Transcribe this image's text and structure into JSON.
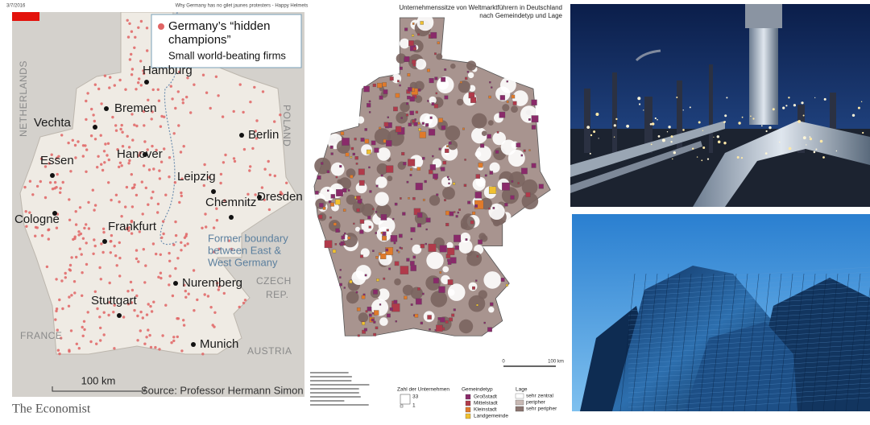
{
  "header": {
    "date": "3/7/2016",
    "title": "Why Germany has no gilet jaunes protesters - Happy Helmets"
  },
  "left_map": {
    "legend_title_lines": [
      "Germany’s “hidden",
      "champions”"
    ],
    "legend_subtitle": "Small world-beating firms",
    "cities": [
      "Hamburg",
      "Bremen",
      "Vechta",
      "Berlin",
      "Hanover",
      "Essen",
      "Leipzig",
      "Dresden",
      "Cologne",
      "Chemnitz",
      "Frankfurt",
      "Nuremberg",
      "Stuttgart",
      "Munich"
    ],
    "countries": [
      "NETHERLANDS",
      "POLAND",
      "CZECH",
      "REP.",
      "FRANCE",
      "AUSTRIA"
    ],
    "boundary_note_lines": [
      "Former boundary",
      "between East &",
      "West Germany"
    ],
    "scale": "100 km",
    "source": "Source: Professor Hermann Simon",
    "brand": "The Economist"
  },
  "right_map": {
    "title_lines": [
      "Unternehmenssitze von Weltmarktführern in Deutschland",
      "nach Gemeindetyp und Lage"
    ],
    "count_legend": {
      "title": "Zahl der Unternehmen",
      "max": "33",
      "min": "1"
    },
    "type_legend": {
      "title": "Gemeindetyp",
      "items": [
        "Großstadt",
        "Mittelstadt",
        "Kleinstadt",
        "Landgemeinde"
      ]
    },
    "location_legend": {
      "title": "Lage",
      "items": [
        "sehr zentral",
        "peripher",
        "sehr peripher"
      ]
    },
    "scale": {
      "start": "0",
      "end": "100 km"
    }
  }
}
